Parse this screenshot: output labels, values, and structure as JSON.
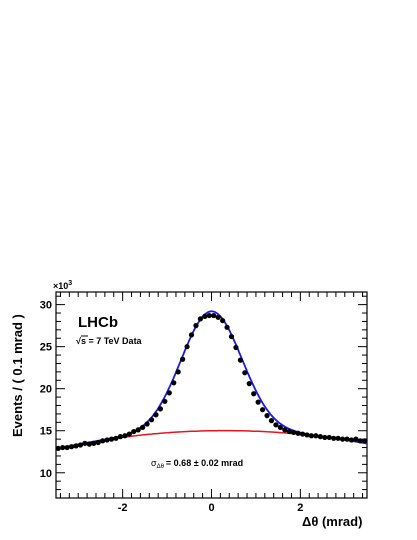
{
  "chart_data": {
    "type": "scatter",
    "xlabel": "Δθ (mrad)",
    "ylabel": "Events / ( 0.1 mrad )",
    "y_multiplier": "×10",
    "y_multiplier_exp": "3",
    "xlim": [
      -3.5,
      3.5
    ],
    "ylim": [
      7,
      31.5
    ],
    "x_ticks": [
      -2,
      0,
      2
    ],
    "x_tick_labels": [
      "-2",
      "0",
      "2"
    ],
    "y_ticks": [
      10,
      15,
      20,
      25,
      30
    ],
    "y_tick_labels": [
      "10",
      "15",
      "20",
      "25",
      "30"
    ],
    "x_minor_step": 0.2,
    "y_minor_step": 1,
    "grid": false,
    "legend": "none",
    "annotations": {
      "experiment": "LHCb",
      "energy_sqrt": "√",
      "energy_rest": "s = 7 TeV Data",
      "sigma_symbol": "σ",
      "sigma_subscript": "Δθ",
      "sigma_text": "=  0.68  ± 0.02 mrad"
    },
    "fit": {
      "mean": 0.0,
      "sigma": 0.68,
      "peak": 14.2
    },
    "background": {
      "coeffs": [
        15.0,
        0.09,
        -0.15
      ],
      "x_start": -2.3,
      "x_end": 2.9
    },
    "series": [
      {
        "color": "#000000",
        "x": [
          -3.45,
          -3.35,
          -3.25,
          -3.15,
          -3.05,
          -2.95,
          -2.85,
          -2.75,
          -2.65,
          -2.55,
          -2.45,
          -2.35,
          -2.25,
          -2.15,
          -2.05,
          -1.95,
          -1.85,
          -1.75,
          -1.65,
          -1.55,
          -1.45,
          -1.35,
          -1.25,
          -1.15,
          -1.05,
          -0.95,
          -0.85,
          -0.75,
          -0.65,
          -0.55,
          -0.45,
          -0.35,
          -0.25,
          -0.15,
          -0.05,
          0.05,
          0.15,
          0.25,
          0.35,
          0.45,
          0.55,
          0.65,
          0.75,
          0.85,
          0.95,
          1.05,
          1.15,
          1.25,
          1.35,
          1.45,
          1.55,
          1.65,
          1.75,
          1.85,
          1.95,
          2.05,
          2.15,
          2.25,
          2.35,
          2.45,
          2.55,
          2.65,
          2.75,
          2.85,
          2.95,
          3.05,
          3.15,
          3.25,
          3.35,
          3.45
        ],
        "y": [
          12.9,
          13.0,
          13.0,
          13.1,
          13.2,
          13.3,
          13.5,
          13.4,
          13.5,
          13.6,
          13.8,
          13.9,
          14.0,
          14.1,
          14.3,
          14.4,
          14.6,
          14.9,
          15.1,
          15.4,
          15.8,
          16.3,
          16.9,
          17.6,
          18.5,
          19.5,
          20.7,
          22.0,
          23.5,
          25.0,
          26.4,
          27.5,
          28.3,
          28.6,
          28.7,
          28.7,
          28.5,
          28.1,
          27.3,
          26.2,
          24.9,
          23.4,
          21.9,
          20.6,
          19.4,
          18.4,
          17.5,
          16.8,
          16.2,
          15.7,
          15.4,
          15.1,
          14.9,
          14.8,
          14.7,
          14.6,
          14.5,
          14.4,
          14.4,
          14.3,
          14.2,
          14.2,
          14.1,
          14.1,
          14.0,
          14.0,
          13.9,
          14.0,
          13.8,
          13.8
        ]
      }
    ]
  }
}
